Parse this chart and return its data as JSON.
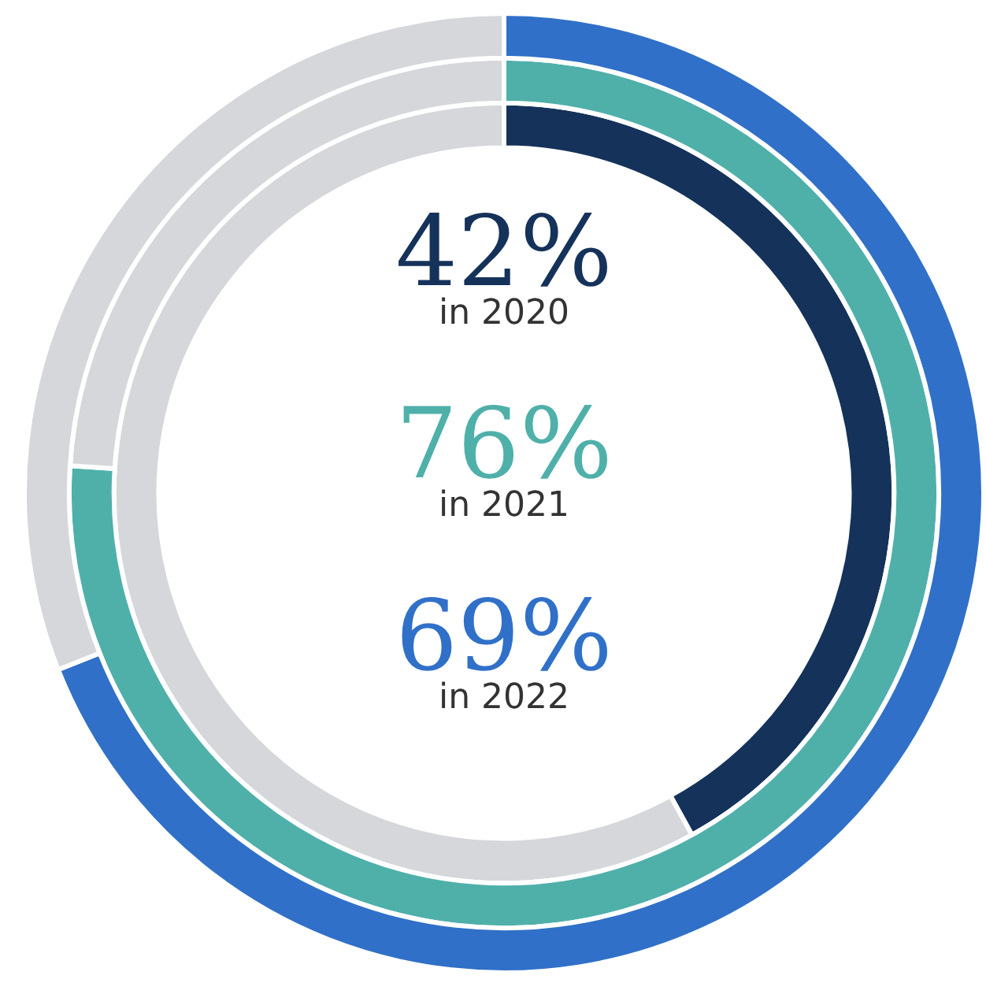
{
  "chart_data": {
    "type": "donut",
    "categories": [
      null,
      null
    ],
    "legend": false,
    "series": [
      {
        "values": [
          42,
          58
        ],
        "colors": [
          "#15325a",
          "#d5d7da"
        ],
        "value_labels": [
          "42%",
          null
        ]
      },
      {
        "values": [
          76,
          24
        ],
        "colors": [
          "#4fb0aa",
          "#d5d7da"
        ],
        "value_labels": [
          "76%",
          null
        ]
      },
      {
        "values": [
          69,
          31
        ],
        "colors": [
          "#3070c8",
          "#d5d7da"
        ],
        "value_labels": [
          "69%",
          null
        ]
      }
    ],
    "annotations": [
      "in 2020",
      "in 2021",
      "in 2022"
    ]
  }
}
